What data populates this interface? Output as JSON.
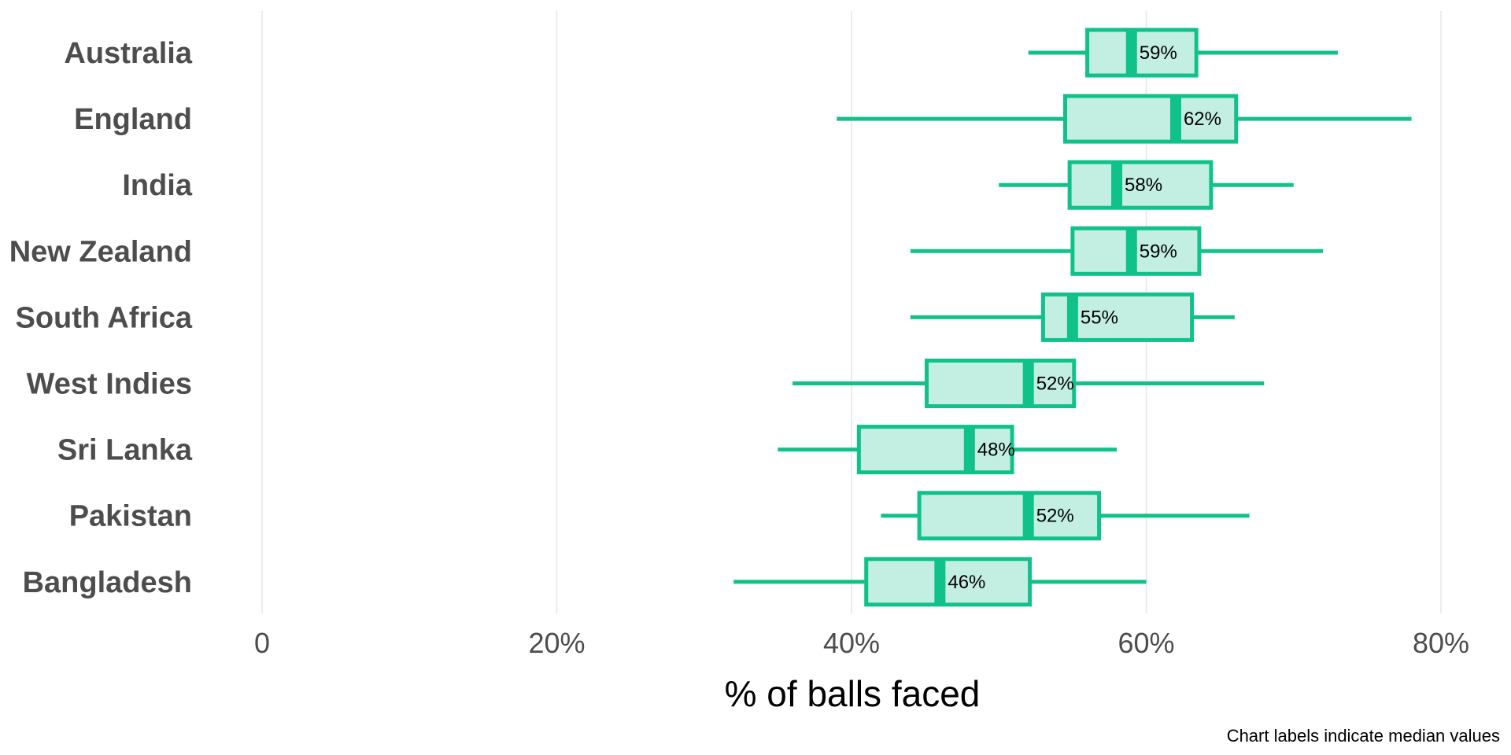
{
  "chart_data": {
    "type": "boxplot",
    "orientation": "horizontal",
    "xlabel": "% of balls faced",
    "caption": "Chart labels indicate median values",
    "xlim": [
      -0.1,
      0.85
    ],
    "x_ticks": [
      0,
      0.2,
      0.4,
      0.6,
      0.8
    ],
    "x_tick_labels": [
      "0",
      "20%",
      "40%",
      "60%",
      "80%"
    ],
    "grid": "vertical major",
    "color": "#10c28a",
    "fill_color": "#c2efe1",
    "categories": [
      "Australia",
      "England",
      "India",
      "New Zealand",
      "South Africa",
      "West Indies",
      "Sri Lanka",
      "Pakistan",
      "Bangladesh"
    ],
    "boxes": [
      {
        "min": 0.52,
        "q1": 0.56,
        "median": 0.59,
        "q3": 0.634,
        "max": 0.73,
        "label": "59%"
      },
      {
        "min": 0.39,
        "q1": 0.545,
        "median": 0.62,
        "q3": 0.661,
        "max": 0.78,
        "label": "62%"
      },
      {
        "min": 0.5,
        "q1": 0.548,
        "median": 0.58,
        "q3": 0.644,
        "max": 0.7,
        "label": "58%"
      },
      {
        "min": 0.44,
        "q1": 0.55,
        "median": 0.59,
        "q3": 0.636,
        "max": 0.72,
        "label": "59%"
      },
      {
        "min": 0.44,
        "q1": 0.53,
        "median": 0.55,
        "q3": 0.631,
        "max": 0.66,
        "label": "55%"
      },
      {
        "min": 0.36,
        "q1": 0.451,
        "median": 0.52,
        "q3": 0.551,
        "max": 0.68,
        "label": "52%"
      },
      {
        "min": 0.35,
        "q1": 0.405,
        "median": 0.48,
        "q3": 0.509,
        "max": 0.58,
        "label": "48%"
      },
      {
        "min": 0.42,
        "q1": 0.446,
        "median": 0.52,
        "q3": 0.568,
        "max": 0.67,
        "label": "52%"
      },
      {
        "min": 0.32,
        "q1": 0.41,
        "median": 0.46,
        "q3": 0.521,
        "max": 0.6,
        "label": "46%"
      }
    ]
  }
}
